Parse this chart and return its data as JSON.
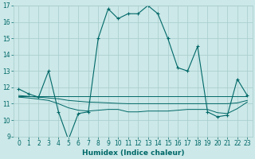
{
  "xlabel": "Humidex (Indice chaleur)",
  "bg_color": "#cce8e8",
  "grid_color": "#a8cccc",
  "line_color": "#006868",
  "xlim": [
    -0.5,
    23.5
  ],
  "ylim": [
    9,
    17
  ],
  "yticks": [
    9,
    10,
    11,
    12,
    13,
    14,
    15,
    16,
    17
  ],
  "xticks": [
    0,
    1,
    2,
    3,
    4,
    5,
    6,
    7,
    8,
    9,
    10,
    11,
    12,
    13,
    14,
    15,
    16,
    17,
    18,
    19,
    20,
    21,
    22,
    23
  ],
  "series": [
    {
      "x": [
        0,
        1,
        2,
        3,
        4,
        5,
        6,
        7,
        8,
        9,
        10,
        11,
        12,
        13,
        14,
        15,
        16,
        17,
        18,
        19,
        20,
        21,
        22,
        23
      ],
      "y": [
        11.9,
        11.6,
        11.4,
        13.0,
        10.5,
        8.8,
        10.4,
        10.5,
        15.0,
        16.8,
        16.2,
        16.5,
        16.5,
        17.0,
        16.5,
        15.0,
        13.2,
        13.0,
        14.5,
        10.5,
        10.2,
        10.3,
        12.5,
        11.5
      ],
      "marker": true
    },
    {
      "x": [
        0,
        1,
        2,
        3,
        4,
        5,
        6,
        7,
        8,
        9,
        10,
        11,
        12,
        13,
        14,
        15,
        16,
        17,
        18,
        19,
        20,
        21,
        22,
        23
      ],
      "y": [
        11.5,
        11.45,
        11.4,
        11.35,
        11.3,
        11.2,
        11.15,
        11.1,
        11.08,
        11.05,
        11.02,
        11.0,
        11.0,
        11.0,
        11.0,
        11.0,
        11.0,
        11.0,
        11.0,
        11.0,
        11.0,
        11.0,
        11.05,
        11.2
      ],
      "marker": false
    },
    {
      "x": [
        0,
        1,
        2,
        3,
        4,
        5,
        6,
        7,
        8,
        9,
        10,
        11,
        12,
        13,
        14,
        15,
        16,
        17,
        18,
        19,
        20,
        21,
        22,
        23
      ],
      "y": [
        11.4,
        11.35,
        11.28,
        11.2,
        11.0,
        10.75,
        10.6,
        10.55,
        10.6,
        10.65,
        10.65,
        10.5,
        10.5,
        10.55,
        10.55,
        10.55,
        10.6,
        10.65,
        10.65,
        10.65,
        10.45,
        10.4,
        10.7,
        11.1
      ],
      "marker": false
    },
    {
      "x": [
        0,
        23
      ],
      "y": [
        11.45,
        11.45
      ],
      "marker": false
    }
  ]
}
